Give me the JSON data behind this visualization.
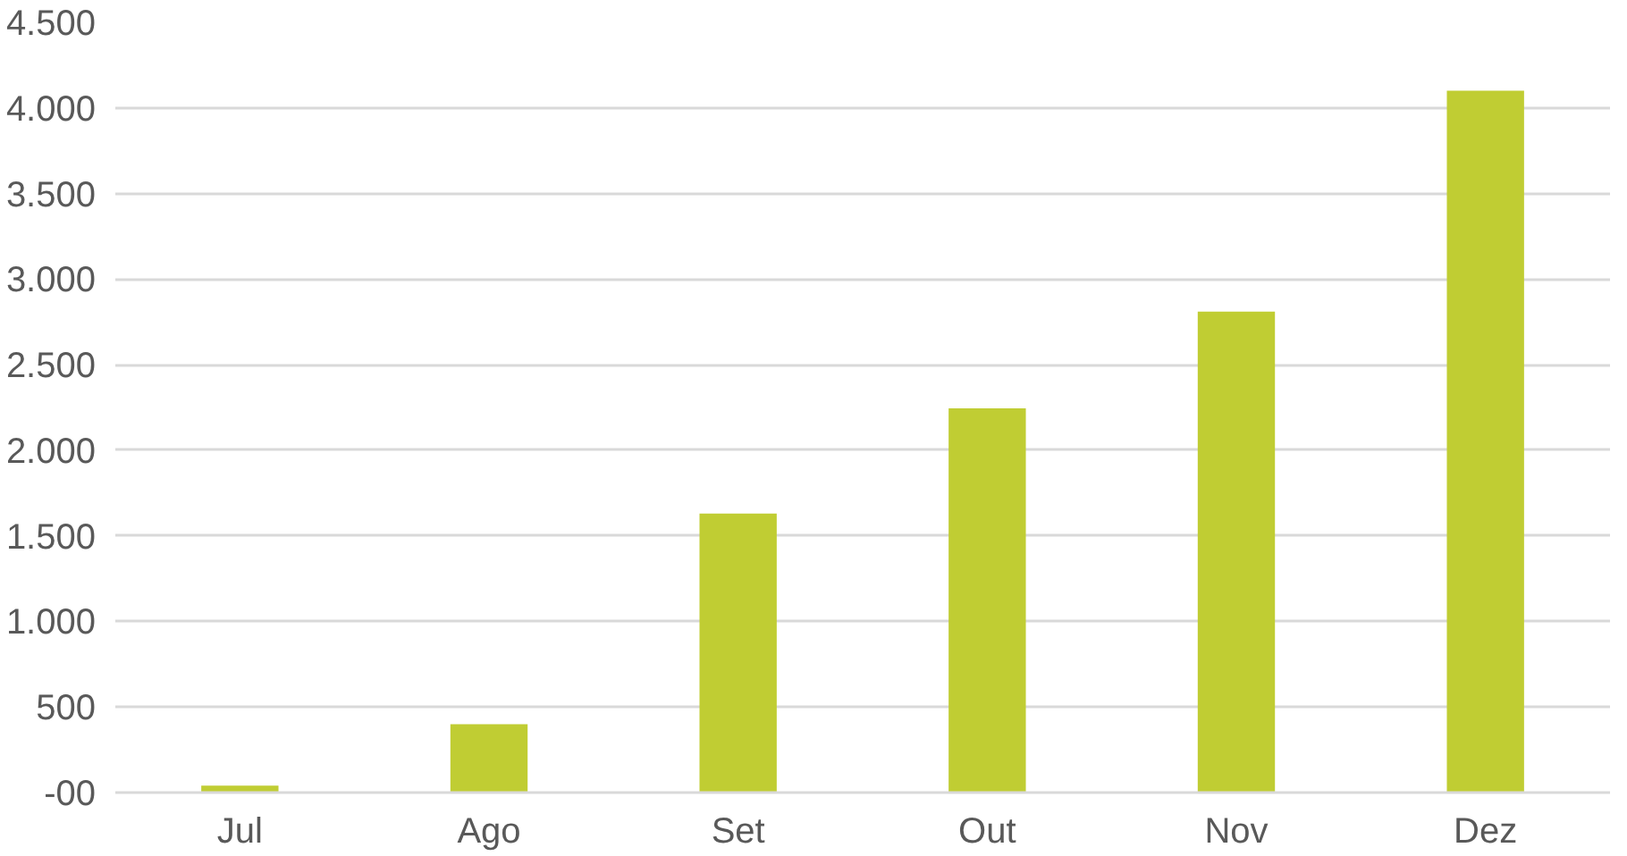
{
  "chart_data": {
    "type": "bar",
    "categories": [
      "Jul",
      "Ago",
      "Set",
      "Out",
      "Nov",
      "Dez"
    ],
    "values": [
      40,
      400,
      1630,
      2245,
      2810,
      4100
    ],
    "color": "#c0cd33",
    "ylim": [
      0,
      4500
    ],
    "yticks": [
      {
        "value": 0,
        "label": "-00"
      },
      500,
      {
        "value": 1000,
        "label": "1.000"
      },
      {
        "value": 1500,
        "label": "1.500"
      },
      {
        "value": 2000,
        "label": "2.000"
      },
      {
        "value": 2500,
        "label": "2.500"
      },
      {
        "value": 3000,
        "label": "3.000"
      },
      {
        "value": 3500,
        "label": "3.500"
      },
      {
        "value": 4000,
        "label": "4.000"
      },
      {
        "value": 4500,
        "label": "4.500"
      }
    ],
    "grid": "y"
  }
}
